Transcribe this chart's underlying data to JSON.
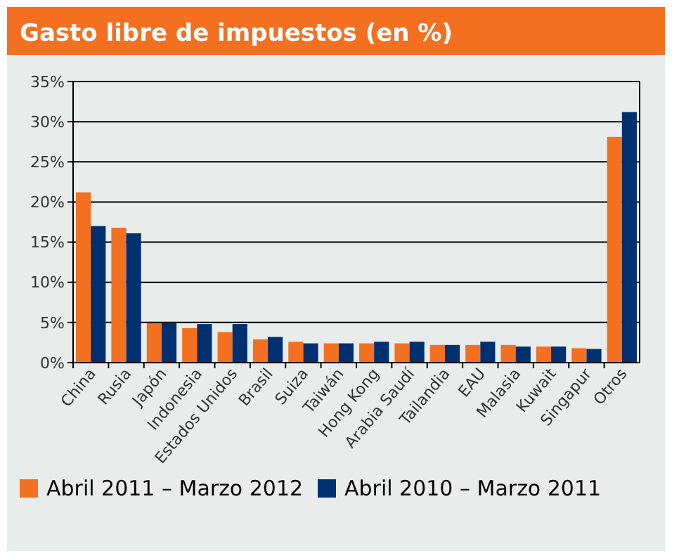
{
  "chart_data": {
    "type": "bar",
    "title": "Gasto libre de impuestos (en %)",
    "categories": [
      "China",
      "Rusia",
      "Japón",
      "Indonesia",
      "Estados Unidos",
      "Brasil",
      "Suiza",
      "Taiwán",
      "Hong Kong",
      "Arabia Saudí",
      "Tailandia",
      "EAU",
      "Malasia",
      "Kuwait",
      "Singapur",
      "Otros"
    ],
    "series": [
      {
        "name": "Abril 2011 – Marzo 2012",
        "color": "#f37021",
        "values": [
          21.2,
          16.8,
          4.9,
          4.3,
          3.8,
          2.9,
          2.6,
          2.4,
          2.4,
          2.4,
          2.2,
          2.2,
          2.2,
          2.0,
          1.8,
          28.1
        ]
      },
      {
        "name": "Abril 2010 – Marzo 2011",
        "color": "#003070",
        "values": [
          17.0,
          16.1,
          4.9,
          4.8,
          4.8,
          3.2,
          2.4,
          2.4,
          2.6,
          2.6,
          2.2,
          2.6,
          2.0,
          2.0,
          1.7,
          31.2
        ]
      }
    ],
    "ylim": [
      0,
      35
    ],
    "yticks": [
      {
        "value": 0,
        "label": "0%"
      },
      {
        "value": 5,
        "label": "5%"
      },
      {
        "value": 10,
        "label": "10%"
      },
      {
        "value": 15,
        "label": "15%"
      },
      {
        "value": 20,
        "label": "20%"
      },
      {
        "value": 25,
        "label": "25%"
      },
      {
        "value": 30,
        "label": "30%"
      },
      {
        "value": 35,
        "label": "35%"
      }
    ],
    "grid": "y",
    "legend": "bottom"
  }
}
